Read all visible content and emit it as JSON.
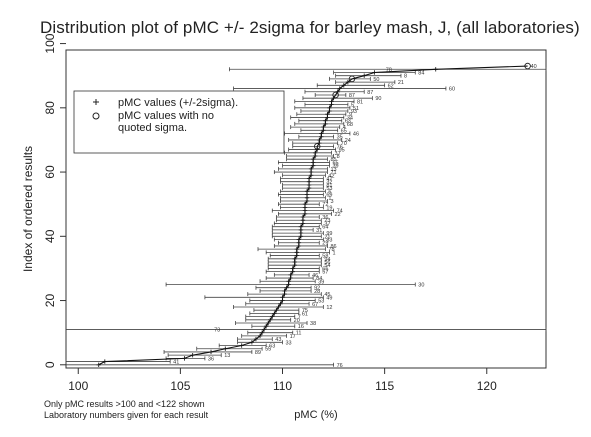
{
  "chart_data": {
    "type": "scatter",
    "title": "Distribution plot of pMC +/- 2sigma for barley mash, J, (all laboratories)",
    "xlabel": "pMC (%)",
    "ylabel": "Index of ordered results",
    "xlim": [
      99.4,
      122.9
    ],
    "ylim": [
      -1,
      98
    ],
    "x_ticks": [
      100,
      105,
      110,
      115,
      120
    ],
    "y_ticks": [
      0,
      20,
      40,
      60,
      80,
      100
    ],
    "grid": false,
    "legend": {
      "placement": "top-left",
      "entries": [
        {
          "symbol": "+",
          "label": "pMC values (+/-2sigma)."
        },
        {
          "symbol": "o",
          "label": "pMC values with no quoted sigma."
        }
      ]
    },
    "notes": [
      "Only pMC results >100 and <122 shown",
      "Laboratory numbers given for each result"
    ],
    "points": [
      {
        "i": 0,
        "x": 101.0,
        "lo": 99.3,
        "hi": 112.5,
        "lab": "76"
      },
      {
        "i": 1,
        "x": 101.3,
        "lo": 99.4,
        "hi": 104.5,
        "lab": "41"
      },
      {
        "i": 2,
        "x": 105.2,
        "lo": 104.3,
        "hi": 106.2,
        "lab": "36"
      },
      {
        "i": 3,
        "x": 105.6,
        "lo": 104.4,
        "hi": 107.0,
        "lab": "13"
      },
      {
        "i": 4,
        "x": 106.5,
        "lo": 104.2,
        "hi": 108.5,
        "lab": "89"
      },
      {
        "i": 5,
        "x": 107.2,
        "lo": 105.8,
        "hi": 109.0,
        "lab": "55"
      },
      {
        "i": 6,
        "x": 108.0,
        "lo": 106.9,
        "hi": 109.2,
        "lab": "63"
      },
      {
        "i": 7,
        "x": 108.5,
        "lo": 107.8,
        "hi": 110.0,
        "lab": "33"
      },
      {
        "i": 8,
        "x": 108.7,
        "lo": 107.8,
        "hi": 109.5,
        "lab": "43"
      },
      {
        "i": 9,
        "x": 108.9,
        "lo": 108.0,
        "hi": 110.2,
        "lab": "17"
      },
      {
        "i": 10,
        "x": 109.0,
        "lo": 108.3,
        "hi": 110.5,
        "lab": "11"
      },
      {
        "i": 11,
        "x": 109.1,
        "lo": 99.3,
        "hi": 122.9,
        "lab": "73"
      },
      {
        "i": 12,
        "x": 109.2,
        "lo": 108.5,
        "hi": 110.6,
        "lab": "16"
      },
      {
        "i": 13,
        "x": 109.3,
        "lo": 107.7,
        "hi": 111.2,
        "lab": "38"
      },
      {
        "i": 14,
        "x": 109.4,
        "lo": 108.2,
        "hi": 110.4,
        "lab": "20"
      },
      {
        "i": 15,
        "x": 109.5,
        "lo": 108.2,
        "hi": 110.6,
        "lab": "7"
      },
      {
        "i": 16,
        "x": 109.6,
        "lo": 108.4,
        "hi": 110.8,
        "lab": "61"
      },
      {
        "i": 17,
        "x": 109.7,
        "lo": 108.6,
        "hi": 110.8,
        "lab": "75"
      },
      {
        "i": 18,
        "x": 109.8,
        "lo": 107.6,
        "hi": 112.0,
        "lab": "12"
      },
      {
        "i": 19,
        "x": 109.9,
        "lo": 108.2,
        "hi": 111.3,
        "lab": "67"
      },
      {
        "i": 20,
        "x": 110.0,
        "lo": 108.4,
        "hi": 111.6,
        "lab": "53"
      },
      {
        "i": 21,
        "x": 110.0,
        "lo": 106.2,
        "hi": 112.0,
        "lab": "49"
      },
      {
        "i": 22,
        "x": 110.1,
        "lo": 108.3,
        "hi": 111.9,
        "lab": "45"
      },
      {
        "i": 23,
        "x": 110.1,
        "lo": 108.9,
        "hi": 111.4,
        "lab": "28"
      },
      {
        "i": 24,
        "x": 110.2,
        "lo": 108.7,
        "hi": 111.4,
        "lab": "92"
      },
      {
        "i": 25,
        "x": 110.3,
        "lo": 104.3,
        "hi": 116.5,
        "lab": "30"
      },
      {
        "i": 26,
        "x": 110.3,
        "lo": 108.9,
        "hi": 111.6,
        "lab": "39"
      },
      {
        "i": 27,
        "x": 110.4,
        "lo": 109.2,
        "hi": 111.5,
        "lab": "84"
      },
      {
        "i": 28,
        "x": 110.4,
        "lo": 109.6,
        "hi": 111.3,
        "lab": "46"
      },
      {
        "i": 29,
        "x": 110.5,
        "lo": 109.2,
        "hi": 111.8,
        "lab": "57"
      },
      {
        "i": 30,
        "x": 110.5,
        "lo": 109.3,
        "hi": 111.8,
        "lab": "66"
      },
      {
        "i": 31,
        "x": 110.6,
        "lo": 109.3,
        "hi": 111.9,
        "lab": "54"
      },
      {
        "i": 32,
        "x": 110.6,
        "lo": 109.3,
        "hi": 111.9,
        "lab": "56"
      },
      {
        "i": 33,
        "x": 110.6,
        "lo": 109.3,
        "hi": 111.9,
        "lab": "94"
      },
      {
        "i": 34,
        "x": 110.7,
        "lo": 109.4,
        "hi": 111.8,
        "lab": "58"
      },
      {
        "i": 35,
        "x": 110.7,
        "lo": 109.2,
        "hi": 112.3,
        "lab": "1"
      },
      {
        "i": 36,
        "x": 110.7,
        "lo": 108.8,
        "hi": 112.1,
        "lab": "78"
      },
      {
        "i": 37,
        "x": 110.8,
        "lo": 109.6,
        "hi": 112.2,
        "lab": "86"
      },
      {
        "i": 38,
        "x": 110.8,
        "lo": 109.8,
        "hi": 111.8,
        "lab": "29"
      },
      {
        "i": 39,
        "x": 110.8,
        "lo": 109.6,
        "hi": 112.0,
        "lab": "83"
      },
      {
        "i": 40,
        "x": 110.9,
        "lo": 109.5,
        "hi": 111.9,
        "lab": "21"
      },
      {
        "i": 41,
        "x": 110.9,
        "lo": 109.5,
        "hi": 112.0,
        "lab": "99"
      },
      {
        "i": 42,
        "x": 110.9,
        "lo": 109.5,
        "hi": 111.5,
        "lab": "31"
      },
      {
        "i": 43,
        "x": 110.9,
        "lo": 109.5,
        "hi": 111.8,
        "lab": "64"
      },
      {
        "i": 44,
        "x": 111.0,
        "lo": 109.6,
        "hi": 111.9,
        "lab": "37"
      },
      {
        "i": 45,
        "x": 111.0,
        "lo": 109.7,
        "hi": 111.9,
        "lab": "23"
      },
      {
        "i": 46,
        "x": 111.0,
        "lo": 109.7,
        "hi": 111.8,
        "lab": "36"
      },
      {
        "i": 47,
        "x": 111.1,
        "lo": 109.8,
        "hi": 112.4,
        "lab": "22"
      },
      {
        "i": 48,
        "x": 111.1,
        "lo": 109.5,
        "hi": 112.5,
        "lab": "74"
      },
      {
        "i": 49,
        "x": 111.1,
        "lo": 109.9,
        "hi": 112.0,
        "lab": "19"
      },
      {
        "i": 50,
        "x": 111.1,
        "lo": 109.8,
        "hi": 111.8,
        "lab": "72"
      },
      {
        "i": 51,
        "x": 111.2,
        "lo": 109.9,
        "hi": 112.2,
        "lab": "3"
      },
      {
        "i": 52,
        "x": 111.2,
        "lo": 109.9,
        "hi": 112.1,
        "lab": "1"
      },
      {
        "i": 53,
        "x": 111.2,
        "lo": 109.8,
        "hi": 112.0,
        "lab": "69"
      },
      {
        "i": 54,
        "x": 111.2,
        "lo": 109.9,
        "hi": 112.1,
        "lab": "6"
      },
      {
        "i": 55,
        "x": 111.3,
        "lo": 110.0,
        "hi": 112.0,
        "lab": "53"
      },
      {
        "i": 56,
        "x": 111.3,
        "lo": 110.0,
        "hi": 112.0,
        "lab": "81"
      },
      {
        "i": 57,
        "x": 111.3,
        "lo": 109.9,
        "hi": 112.0,
        "lab": "32"
      },
      {
        "i": 58,
        "x": 111.3,
        "lo": 109.9,
        "hi": 112.0,
        "lab": "47"
      },
      {
        "i": 59,
        "x": 111.4,
        "lo": 110.0,
        "hi": 112.1,
        "lab": "42"
      },
      {
        "i": 60,
        "x": 111.4,
        "lo": 109.6,
        "hi": 112.2,
        "lab": "71"
      },
      {
        "i": 61,
        "x": 111.4,
        "lo": 109.8,
        "hi": 112.2,
        "lab": "13"
      },
      {
        "i": 62,
        "x": 111.5,
        "lo": 110.0,
        "hi": 112.3,
        "lab": "39"
      },
      {
        "i": 63,
        "x": 111.5,
        "lo": 109.8,
        "hi": 112.3,
        "lab": "65"
      },
      {
        "i": 64,
        "x": 111.5,
        "lo": 110.2,
        "hi": 112.2,
        "lab": "85"
      },
      {
        "i": 65,
        "x": 111.6,
        "lo": 110.2,
        "hi": 112.5,
        "lab": "8"
      },
      {
        "i": 66,
        "x": 111.6,
        "lo": 110.1,
        "hi": 112.4,
        "lab": "37"
      },
      {
        "i": 67,
        "x": 111.7,
        "lo": 110.3,
        "hi": 112.6,
        "lab": "95"
      },
      {
        "i": 68,
        "x": 111.7,
        "lo": 110.5,
        "hi": 112.5,
        "lab": "76",
        "no_sigma": true
      },
      {
        "i": 69,
        "x": 111.8,
        "lo": 110.5,
        "hi": 112.7,
        "lab": "70"
      },
      {
        "i": 70,
        "x": 111.8,
        "lo": 110.3,
        "hi": 112.9,
        "lab": "24"
      },
      {
        "i": 71,
        "x": 111.9,
        "lo": 110.8,
        "hi": 112.5,
        "lab": "35"
      },
      {
        "i": 72,
        "x": 111.9,
        "lo": 110.1,
        "hi": 113.3,
        "lab": "46"
      },
      {
        "i": 73,
        "x": 112.0,
        "lo": 110.9,
        "hi": 112.7,
        "lab": "65"
      },
      {
        "i": 74,
        "x": 112.0,
        "lo": 110.4,
        "hi": 112.8,
        "lab": "4"
      },
      {
        "i": 75,
        "x": 112.1,
        "lo": 110.6,
        "hi": 113.0,
        "lab": "68"
      },
      {
        "i": 76,
        "x": 112.1,
        "lo": 110.8,
        "hi": 112.9,
        "lab": "63"
      },
      {
        "i": 77,
        "x": 112.2,
        "lo": 110.4,
        "hi": 113.0,
        "lab": "34"
      },
      {
        "i": 78,
        "x": 112.2,
        "lo": 110.7,
        "hi": 113.1,
        "lab": "9"
      },
      {
        "i": 79,
        "x": 112.3,
        "lo": 110.9,
        "hi": 113.2,
        "lab": "93"
      },
      {
        "i": 80,
        "x": 112.3,
        "lo": 110.6,
        "hi": 113.3,
        "lab": "51"
      },
      {
        "i": 81,
        "x": 112.4,
        "lo": 111.1,
        "hi": 113.2,
        "lab": "5"
      },
      {
        "i": 82,
        "x": 112.4,
        "lo": 110.6,
        "hi": 113.5,
        "lab": "81"
      },
      {
        "i": 83,
        "x": 112.5,
        "lo": 111.0,
        "hi": 114.4,
        "lab": "90"
      },
      {
        "i": 84,
        "x": 112.6,
        "lo": 111.6,
        "hi": 113.1,
        "lab": "87",
        "no_sigma": true
      },
      {
        "i": 85,
        "x": 112.7,
        "lo": 111.1,
        "hi": 114.0,
        "lab": "87"
      },
      {
        "i": 86,
        "x": 112.8,
        "lo": 107.6,
        "hi": 118.0,
        "lab": "60"
      },
      {
        "i": 87,
        "x": 113.0,
        "lo": 111.7,
        "hi": 115.0,
        "lab": "62"
      },
      {
        "i": 88,
        "x": 113.2,
        "lo": 112.6,
        "hi": 115.5,
        "lab": "21"
      },
      {
        "i": 89,
        "x": 113.4,
        "lo": 112.3,
        "hi": 114.3,
        "lab": "50",
        "no_sigma": true
      },
      {
        "i": 90,
        "x": 114.0,
        "lo": 112.6,
        "hi": 115.8,
        "lab": "8"
      },
      {
        "i": 91,
        "x": 114.5,
        "lo": 112.5,
        "hi": 116.5,
        "lab": "84"
      },
      {
        "i": 92,
        "x": 117.5,
        "lo": 107.4,
        "hi": 122.9,
        "lab": "78"
      },
      {
        "i": 93,
        "x": 122.0,
        "lo": 122.0,
        "hi": 122.0,
        "lab": "40",
        "no_sigma": true
      }
    ]
  }
}
